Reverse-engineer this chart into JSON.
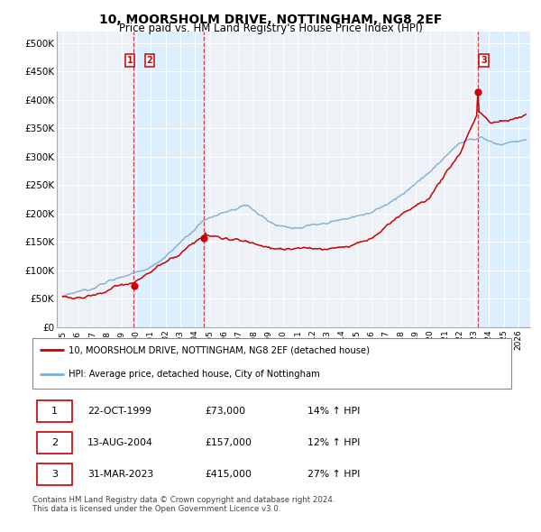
{
  "title": "10, MOORSHOLM DRIVE, NOTTINGHAM, NG8 2EF",
  "subtitle": "Price paid vs. HM Land Registry's House Price Index (HPI)",
  "title_fontsize": 10,
  "subtitle_fontsize": 8.5,
  "xlim_start": 1994.6,
  "xlim_end": 2026.8,
  "ylim_min": 0,
  "ylim_max": 520000,
  "yticks": [
    0,
    50000,
    100000,
    150000,
    200000,
    250000,
    300000,
    350000,
    400000,
    450000,
    500000
  ],
  "ytick_labels": [
    "£0",
    "£50K",
    "£100K",
    "£150K",
    "£200K",
    "£250K",
    "£300K",
    "£350K",
    "£400K",
    "£450K",
    "£500K"
  ],
  "xtick_years": [
    1995,
    1996,
    1997,
    1998,
    1999,
    2000,
    2001,
    2002,
    2003,
    2004,
    2005,
    2006,
    2007,
    2008,
    2009,
    2010,
    2011,
    2012,
    2013,
    2014,
    2015,
    2016,
    2017,
    2018,
    2019,
    2020,
    2021,
    2022,
    2023,
    2024,
    2025,
    2026
  ],
  "sale1_date": 1999.81,
  "sale1_price": 73000,
  "sale2_date": 2004.62,
  "sale2_price": 157000,
  "sale3_date": 2023.25,
  "sale3_price": 415000,
  "shade1_start": 1999.81,
  "shade1_end": 2004.62,
  "shade2_start": 2023.25,
  "shade2_end": 2026.8,
  "red_color": "#cc0000",
  "blue_color": "#7aadd4",
  "shade_color": "#ddeeff",
  "hatch_color": "#c0ccdd",
  "bg_color": "#ffffff",
  "plot_bg": "#eef2f7",
  "legend_label_red": "10, MOORSHOLM DRIVE, NOTTINGHAM, NG8 2EF (detached house)",
  "legend_label_blue": "HPI: Average price, detached house, City of Nottingham",
  "table_data": [
    [
      "1",
      "22-OCT-1999",
      "£73,000",
      "14% ↑ HPI"
    ],
    [
      "2",
      "13-AUG-2004",
      "£157,000",
      "12% ↑ HPI"
    ],
    [
      "3",
      "31-MAR-2023",
      "£415,000",
      "27% ↑ HPI"
    ]
  ],
  "footer": "Contains HM Land Registry data © Crown copyright and database right 2024.\nThis data is licensed under the Open Government Licence v3.0."
}
